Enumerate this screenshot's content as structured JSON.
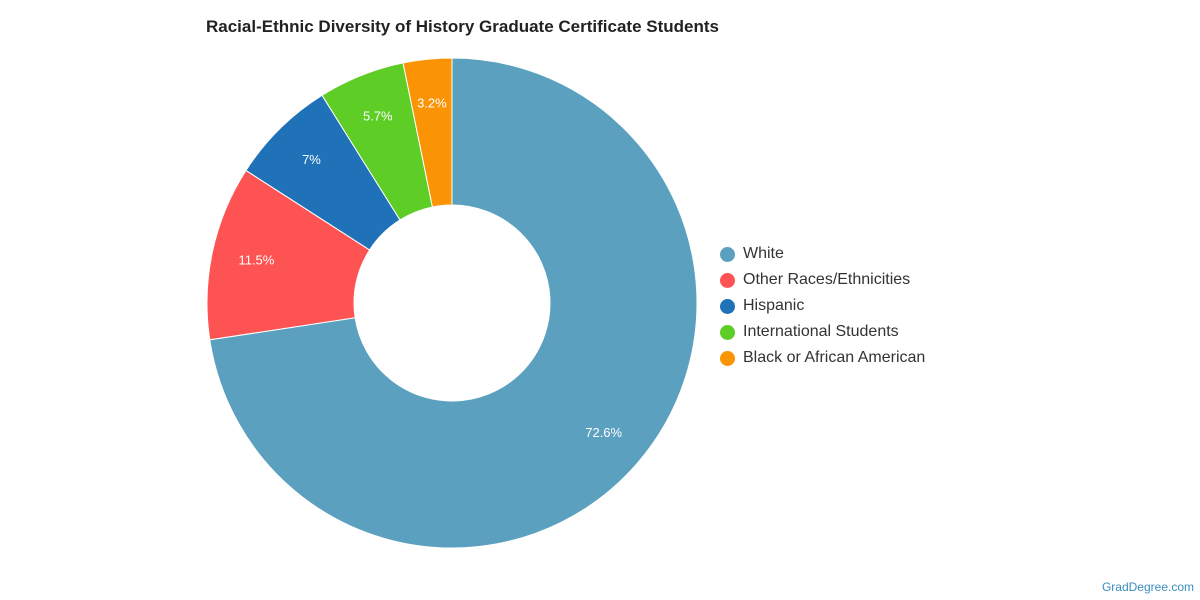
{
  "chart_data": {
    "type": "pie",
    "title": "Racial-Ethnic Diversity of History Graduate Certificate Students",
    "donut": true,
    "legend_position": "right",
    "slices": [
      {
        "label": "White",
        "value": 72.6,
        "display": "72.6%",
        "color": "#5ba1bf"
      },
      {
        "label": "Other Races/Ethnicities",
        "value": 11.5,
        "display": "11.5%",
        "color": "#fd5353"
      },
      {
        "label": "Hispanic",
        "value": 7,
        "display": "7%",
        "color": "#1f72b8"
      },
      {
        "label": "International Students",
        "value": 5.7,
        "display": "5.7%",
        "color": "#5ecd26"
      },
      {
        "label": "Black or African American",
        "value": 3.2,
        "display": "3.2%",
        "color": "#fb9405"
      }
    ]
  },
  "watermark": "GradDegree.com"
}
